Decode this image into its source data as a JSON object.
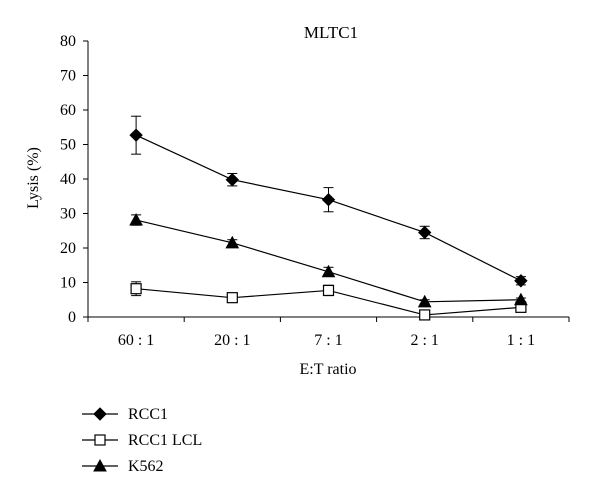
{
  "chart_data": {
    "type": "line",
    "title": "MLTC1",
    "xlabel": "E:T ratio",
    "ylabel": "Lysis (%)",
    "categories": [
      "60 : 1",
      "20 : 1",
      "7 : 1",
      "2 : 1",
      "1 : 1"
    ],
    "ylim": [
      0,
      80
    ],
    "yticks": [
      0,
      10,
      20,
      30,
      40,
      50,
      60,
      70,
      80
    ],
    "grid": false,
    "legend_position": "bottom-left",
    "series": [
      {
        "name": "RCC1",
        "marker": "diamond",
        "values": [
          52.7,
          39.8,
          34.0,
          24.5,
          10.5
        ],
        "errors": [
          5.5,
          1.8,
          3.5,
          1.8,
          1.2
        ]
      },
      {
        "name": "RCC1 LCL",
        "marker": "open-square",
        "values": [
          8.2,
          5.6,
          7.7,
          0.6,
          2.8
        ],
        "errors": [
          2.0,
          0.6,
          1.5,
          0.5,
          0.8
        ]
      },
      {
        "name": "K562",
        "marker": "triangle",
        "values": [
          28.1,
          21.5,
          13.1,
          4.4,
          5.0
        ],
        "errors": [
          1.5,
          0.9,
          1.3,
          0.6,
          0.5
        ]
      }
    ]
  }
}
